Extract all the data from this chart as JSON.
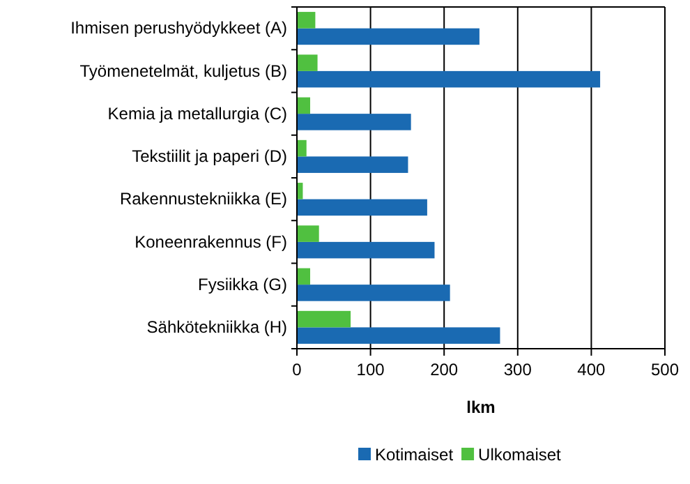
{
  "chart_data": {
    "type": "bar",
    "orientation": "horizontal",
    "categories": [
      "Ihmisen perushyödykkeet (A)",
      "Työmenetelmät, kuljetus (B)",
      "Kemia ja metallurgia (C)",
      "Tekstiilit ja paperi (D)",
      "Rakennustekniikka (E)",
      "Koneenrakennus (F)",
      "Fysiikka (G)",
      "Sähkötekniikka (H)"
    ],
    "series": [
      {
        "name": "Kotimaiset",
        "color": "#1a6ab2",
        "values": [
          248,
          412,
          155,
          151,
          177,
          187,
          208,
          276
        ]
      },
      {
        "name": "Ulkomaiset",
        "color": "#50c040",
        "values": [
          25,
          28,
          18,
          13,
          8,
          30,
          18,
          73
        ]
      }
    ],
    "xlabel": "lkm",
    "xlim": [
      0,
      500
    ],
    "xticks": [
      0,
      100,
      200,
      300,
      400,
      500
    ],
    "grid": "x",
    "legend": "bottom"
  }
}
